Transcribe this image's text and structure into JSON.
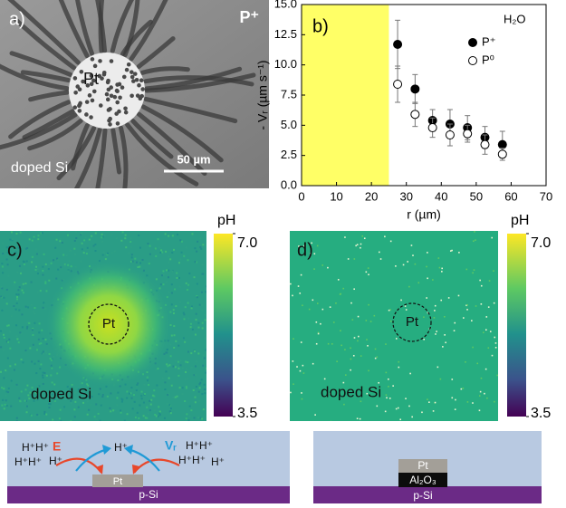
{
  "panel_a": {
    "label": "a)",
    "doping": "P⁺",
    "electrode": "Pt",
    "substrate": "doped Si",
    "scale_bar": "50 µm"
  },
  "chart_data": {
    "type": "scatter",
    "label": "b)",
    "annotation": "H₂O",
    "x_label": "r (µm)",
    "y_label": "- Vᵣ (µm s⁻¹)",
    "x": [
      27.5,
      32.5,
      37.5,
      42.5,
      47.5,
      52.5,
      57.5
    ],
    "series": [
      {
        "name": "P⁺",
        "color": "#000000",
        "marker": "filled",
        "values": [
          11.7,
          8.0,
          5.4,
          5.1,
          4.8,
          4.0,
          3.4
        ],
        "errors": [
          2.0,
          1.2,
          0.9,
          1.2,
          1.0,
          0.9,
          1.1
        ]
      },
      {
        "name": "P⁰",
        "color": "#000000",
        "marker": "open",
        "values": [
          8.4,
          5.9,
          4.8,
          4.2,
          4.3,
          3.4,
          2.6
        ],
        "errors": [
          1.5,
          1.0,
          0.8,
          0.9,
          0.7,
          0.8,
          0.5
        ]
      }
    ],
    "xlim": [
      0,
      70
    ],
    "xticks": [
      0,
      10,
      20,
      30,
      40,
      50,
      60,
      70
    ],
    "ylim": [
      0,
      15
    ],
    "yticks": [
      {
        "value": 0,
        "label": "0.0"
      },
      {
        "value": 2.5,
        "label": "2.5"
      },
      {
        "value": 5,
        "label": "5.0"
      },
      {
        "value": 7.5,
        "label": "7.5"
      },
      {
        "value": 10,
        "label": "10.0"
      },
      {
        "value": 12.5,
        "label": "12.5"
      },
      {
        "value": 15,
        "label": "15.0"
      }
    ],
    "highlight_xrange": [
      0,
      25
    ],
    "highlight_color": "#ffff66",
    "legend": "upper right"
  },
  "panel_c": {
    "label": "c)",
    "electrode": "Pt",
    "substrate": "doped Si",
    "colorbar": {
      "title": "pH",
      "clim": [
        3.5,
        7
      ],
      "ticks": [
        {
          "value": 7,
          "label": "7.0"
        },
        3.5
      ]
    }
  },
  "panel_d": {
    "label": "d)",
    "electrode": "Pt",
    "substrate": "doped Si",
    "colorbar": {
      "title": "pH",
      "clim": [
        3.5,
        7
      ],
      "ticks": [
        {
          "value": 7,
          "label": "7.0"
        },
        3.5
      ]
    }
  },
  "schematic_c": {
    "ions": [
      "H⁺H⁺",
      "H⁺H⁺",
      "H⁺",
      "H⁺",
      "H⁺H⁺",
      "H⁺H⁺",
      "H⁺"
    ],
    "field": "E",
    "velocity": "Vᵣ",
    "electrode": "Pt",
    "substrate": "p-Si"
  },
  "schematic_d": {
    "electrode": "Pt",
    "oxide": "Al₂O₃",
    "substrate": "p-Si"
  }
}
